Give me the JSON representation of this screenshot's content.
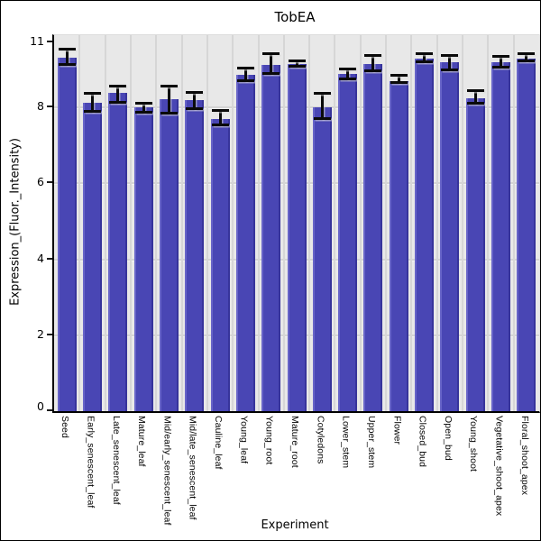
{
  "frame": {
    "background": "#ffffff",
    "border_color": "#000000"
  },
  "chart_data": {
    "type": "bar",
    "title": "TobEA",
    "xlabel": "Experiment",
    "ylabel": "Expression_(Fluor._Intensity)",
    "legend": null,
    "grid": true,
    "ylim": [
      0,
      9.9
    ],
    "yticks": [
      0,
      2,
      4,
      6,
      8
    ],
    "ytop_tick_label": "11",
    "categories": [
      "Seed",
      "Early_senescent_leaf",
      "Late_senescent_leaf",
      "Mature_leaf",
      "Mid/early_senescent_leaf",
      "Mid/late_senescent_leaf",
      "Cauline_leaf",
      "Young_leaf",
      "Young_root",
      "Mature_root",
      "Cotyledons",
      "Lower_stem",
      "Upper_stem",
      "Flower",
      "Closed_bud",
      "Open_bud",
      "Young_shoot",
      "Vegetative_shoot_apex",
      "Floral_shoot_apex"
    ],
    "values": [
      9.3,
      8.13,
      8.37,
      8.0,
      8.22,
      8.2,
      7.69,
      8.85,
      9.11,
      9.13,
      8.0,
      8.87,
      9.13,
      8.7,
      9.28,
      9.18,
      8.25,
      9.18,
      9.28
    ],
    "error_upper": [
      9.54,
      8.39,
      8.58,
      8.13,
      8.58,
      8.41,
      7.93,
      9.04,
      9.42,
      9.23,
      8.39,
      9.01,
      9.38,
      8.85,
      9.42,
      9.38,
      8.44,
      9.35,
      9.42
    ],
    "error_lower": [
      9.11,
      7.88,
      8.13,
      7.86,
      7.84,
      7.96,
      7.52,
      8.68,
      8.87,
      9.06,
      7.69,
      8.73,
      8.94,
      8.63,
      9.18,
      8.97,
      8.1,
      9.04,
      9.21
    ],
    "colors": {
      "bar": "#4946b4",
      "bar_edge_light": "#6764c8",
      "bar_edge_dark": "#37349b",
      "plot_background": "#e8e8e8",
      "gridline": "#d4d4d4",
      "axis": "#000000",
      "error_bar": "#0a0a0a"
    }
  }
}
